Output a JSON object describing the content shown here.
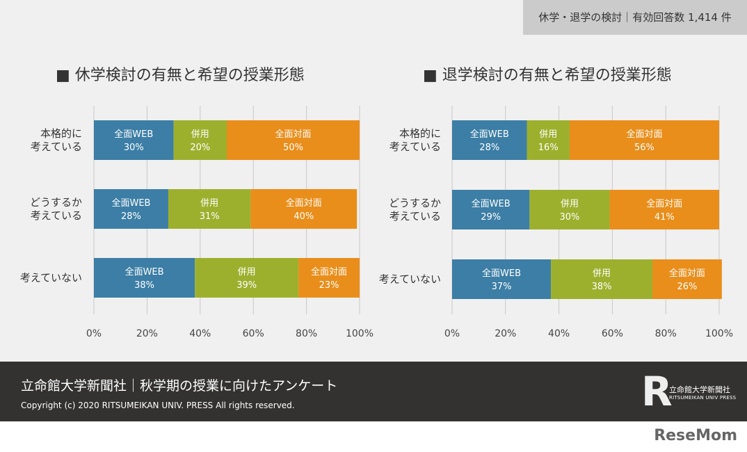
{
  "badge": "休学・退学の検討｜有効回答数 1,414 件",
  "colors": {
    "web": "#3c7ea5",
    "both": "#9db02e",
    "face": "#e98e1b",
    "grid": "#c8c8c8"
  },
  "chart_data": [
    {
      "type": "bar",
      "stacked": true,
      "orientation": "horizontal",
      "title": "■ 休学検討の有無と希望の授業形態",
      "categories": [
        "本格的に\n考えている",
        "どうするか\n考えている",
        "考えていない"
      ],
      "series": [
        {
          "name": "全面WEB",
          "values": [
            30,
            28,
            38
          ]
        },
        {
          "name": "併用",
          "values": [
            20,
            31,
            39
          ]
        },
        {
          "name": "全面対面",
          "values": [
            50,
            40,
            23
          ]
        }
      ],
      "xlim": [
        0,
        100
      ],
      "xticks": [
        "0%",
        "20%",
        "40%",
        "60%",
        "80%",
        "100%"
      ],
      "grid": true
    },
    {
      "type": "bar",
      "stacked": true,
      "orientation": "horizontal",
      "title": "■ 退学検討の有無と希望の授業形態",
      "categories": [
        "本格的に\n考えている",
        "どうするか\n考えている",
        "考えていない"
      ],
      "series": [
        {
          "name": "全面WEB",
          "values": [
            28,
            29,
            37
          ]
        },
        {
          "name": "併用",
          "values": [
            16,
            30,
            38
          ]
        },
        {
          "name": "全面対面",
          "values": [
            56,
            41,
            26
          ]
        }
      ],
      "xlim": [
        0,
        100
      ],
      "xticks": [
        "0%",
        "20%",
        "40%",
        "60%",
        "80%",
        "100%"
      ],
      "grid": true
    }
  ],
  "footer": {
    "title": "立命館大学新聞社｜秋学期の授業に向けたアンケート",
    "copyright": "Copyright (c) 2020  RITSUMEIKAN UNIV. PRESS  All rights reserved.",
    "logo_ja": "立命館大学新聞社",
    "logo_en": "RITSUMEIKAN UNIV PRESS"
  },
  "watermark": "ReseMom"
}
